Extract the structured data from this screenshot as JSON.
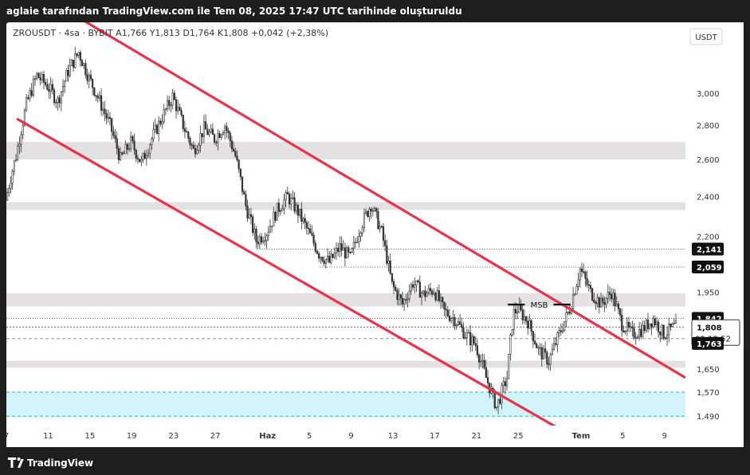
{
  "header": {
    "caption": "aglaie tarafından TradingView.com ile Tem 08, 2025 17:47 UTC tarihinde oluşturuldu"
  },
  "legend": {
    "symbol_line": "ZROUSDT · 4sa · BYBIT  A1,766  Y1,813  D1,764  K1,808  +0,042 (+2,38%)"
  },
  "footer": {
    "logo_text": "TradingView"
  },
  "colors": {
    "channel": "#e8344a",
    "zone": "#dedcdc",
    "demand": "#bfeef7",
    "candle": "#333333"
  },
  "chart_data": {
    "type": "candlestick",
    "title": "",
    "symbol": "ZROUSDT",
    "interval": "4sa",
    "exchange": "BYBIT",
    "ohlc_last": {
      "open": 1.766,
      "high": 1.813,
      "low": 1.764,
      "close": 1.808,
      "change": 0.042,
      "change_pct": "+2,38%"
    },
    "currency_label": "USDT",
    "y_scale": "log",
    "ylim": [
      1.46,
      3.5
    ],
    "y_ticks": [
      "3,000",
      "2,800",
      "2,600",
      "2,400",
      "2,200",
      "1,950",
      "1,650",
      "1,570",
      "1,490"
    ],
    "y_tick_values": [
      3.0,
      2.8,
      2.6,
      2.4,
      2.2,
      1.95,
      1.65,
      1.57,
      1.49
    ],
    "x_ticks": [
      "7",
      "11",
      "15",
      "19",
      "23",
      "27",
      "Haz",
      "5",
      "9",
      "13",
      "17",
      "21",
      "25",
      "Tem",
      "5",
      "9"
    ],
    "x_tick_dates": [
      "2025-05-07",
      "2025-05-11",
      "2025-05-15",
      "2025-05-19",
      "2025-05-23",
      "2025-05-27",
      "2025-06-01",
      "2025-06-05",
      "2025-06-09",
      "2025-06-13",
      "2025-06-17",
      "2025-06-21",
      "2025-06-25",
      "2025-07-01",
      "2025-07-05",
      "2025-07-09"
    ],
    "xlim": [
      "2025-05-07",
      "2025-07-11"
    ],
    "price_levels": [
      {
        "label": "2,141",
        "value": 2.141,
        "style": "dotted"
      },
      {
        "label": "2,059",
        "value": 2.059,
        "style": "dotted"
      },
      {
        "label": "1,842",
        "value": 1.842,
        "style": "dotted"
      },
      {
        "label": "1,808",
        "value": 1.808,
        "style": "current"
      },
      {
        "label": "1,763",
        "value": 1.763,
        "style": "dashed"
      }
    ],
    "countdown": "02:12:52",
    "zones": [
      {
        "type": "resistance",
        "from": 2.6,
        "to": 2.7
      },
      {
        "type": "resistance",
        "from": 2.33,
        "to": 2.37
      },
      {
        "type": "resistance",
        "from": 1.89,
        "to": 1.945
      },
      {
        "type": "support",
        "from": 1.655,
        "to": 1.68
      },
      {
        "type": "demand",
        "from": 1.49,
        "to": 1.57
      }
    ],
    "channel": {
      "upper": [
        {
          "date": "2025-05-13",
          "price": 3.58
        },
        {
          "date": "2025-07-11",
          "price": 1.62
        }
      ],
      "lower": [
        {
          "date": "2025-05-08",
          "price": 2.84
        },
        {
          "date": "2025-06-30",
          "price": 1.43
        }
      ]
    },
    "annotation": {
      "text": "MSB",
      "price": 1.898,
      "from": "2025-06-24",
      "to": "2025-06-30"
    },
    "close_path": [
      {
        "date": "2025-05-07",
        "price": 2.38
      },
      {
        "date": "2025-05-08",
        "price": 2.62
      },
      {
        "date": "2025-05-09",
        "price": 2.93
      },
      {
        "date": "2025-05-10",
        "price": 3.12
      },
      {
        "date": "2025-05-11",
        "price": 3.05
      },
      {
        "date": "2025-05-12",
        "price": 2.95
      },
      {
        "date": "2025-05-13",
        "price": 3.15
      },
      {
        "date": "2025-05-14",
        "price": 3.28
      },
      {
        "date": "2025-05-15",
        "price": 3.1
      },
      {
        "date": "2025-05-16",
        "price": 2.95
      },
      {
        "date": "2025-05-17",
        "price": 2.8
      },
      {
        "date": "2025-05-18",
        "price": 2.6
      },
      {
        "date": "2025-05-19",
        "price": 2.7
      },
      {
        "date": "2025-05-20",
        "price": 2.58
      },
      {
        "date": "2025-05-21",
        "price": 2.72
      },
      {
        "date": "2025-05-22",
        "price": 2.85
      },
      {
        "date": "2025-05-23",
        "price": 2.98
      },
      {
        "date": "2025-05-24",
        "price": 2.8
      },
      {
        "date": "2025-05-25",
        "price": 2.65
      },
      {
        "date": "2025-05-26",
        "price": 2.78
      },
      {
        "date": "2025-05-27",
        "price": 2.72
      },
      {
        "date": "2025-05-28",
        "price": 2.8
      },
      {
        "date": "2025-05-29",
        "price": 2.62
      },
      {
        "date": "2025-05-30",
        "price": 2.35
      },
      {
        "date": "2025-05-31",
        "price": 2.18
      },
      {
        "date": "2025-06-01",
        "price": 2.22
      },
      {
        "date": "2025-06-02",
        "price": 2.33
      },
      {
        "date": "2025-06-03",
        "price": 2.4
      },
      {
        "date": "2025-06-04",
        "price": 2.32
      },
      {
        "date": "2025-06-05",
        "price": 2.22
      },
      {
        "date": "2025-06-06",
        "price": 2.12
      },
      {
        "date": "2025-06-07",
        "price": 2.08
      },
      {
        "date": "2025-06-08",
        "price": 2.15
      },
      {
        "date": "2025-06-09",
        "price": 2.1
      },
      {
        "date": "2025-06-10",
        "price": 2.25
      },
      {
        "date": "2025-06-11",
        "price": 2.36
      },
      {
        "date": "2025-06-12",
        "price": 2.22
      },
      {
        "date": "2025-06-13",
        "price": 1.98
      },
      {
        "date": "2025-06-14",
        "price": 1.9
      },
      {
        "date": "2025-06-15",
        "price": 1.99
      },
      {
        "date": "2025-06-16",
        "price": 1.94
      },
      {
        "date": "2025-06-17",
        "price": 1.96
      },
      {
        "date": "2025-06-18",
        "price": 1.87
      },
      {
        "date": "2025-06-19",
        "price": 1.84
      },
      {
        "date": "2025-06-20",
        "price": 1.78
      },
      {
        "date": "2025-06-21",
        "price": 1.74
      },
      {
        "date": "2025-06-22",
        "price": 1.62
      },
      {
        "date": "2025-06-23",
        "price": 1.52
      },
      {
        "date": "2025-06-24",
        "price": 1.62
      },
      {
        "date": "2025-06-24",
        "price": 1.86
      },
      {
        "date": "2025-06-25",
        "price": 1.88
      },
      {
        "date": "2025-06-26",
        "price": 1.83
      },
      {
        "date": "2025-06-27",
        "price": 1.72
      },
      {
        "date": "2025-06-28",
        "price": 1.68
      },
      {
        "date": "2025-06-29",
        "price": 1.78
      },
      {
        "date": "2025-06-30",
        "price": 1.88
      },
      {
        "date": "2025-07-01",
        "price": 2.05
      },
      {
        "date": "2025-07-02",
        "price": 1.95
      },
      {
        "date": "2025-07-03",
        "price": 1.9
      },
      {
        "date": "2025-07-04",
        "price": 1.95
      },
      {
        "date": "2025-07-05",
        "price": 1.82
      },
      {
        "date": "2025-07-06",
        "price": 1.78
      },
      {
        "date": "2025-07-07",
        "price": 1.8
      },
      {
        "date": "2025-07-08",
        "price": 1.84
      },
      {
        "date": "2025-07-09",
        "price": 1.78
      },
      {
        "date": "2025-07-10",
        "price": 1.808
      }
    ]
  }
}
